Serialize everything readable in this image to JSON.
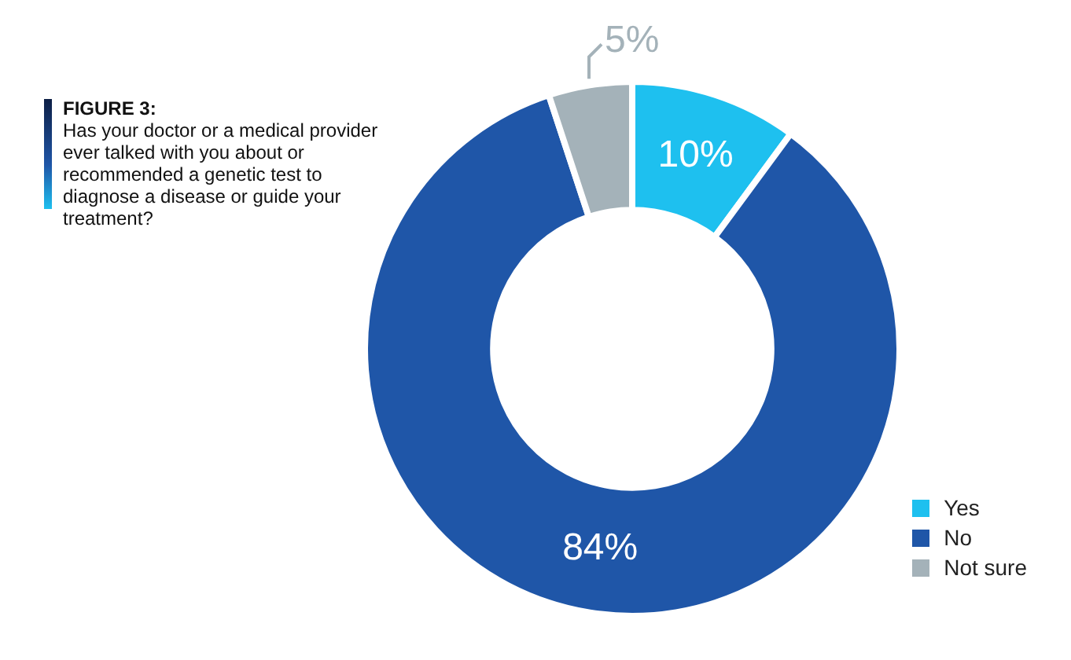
{
  "chart_data": {
    "type": "donut",
    "title": "FIGURE 3:",
    "subtitle": "Has your doctor or a medical provider ever talked with you about or recommended a genetic test to diagnose a disease or guide your treatment?",
    "categories": [
      "Yes",
      "No",
      "Not sure"
    ],
    "values": [
      10,
      84,
      5
    ],
    "colors": [
      "#1ec0ef",
      "#1f56a8",
      "#a4b2b9"
    ],
    "value_labels": [
      "10%",
      "84%",
      "5%"
    ],
    "legend": "bottom right"
  }
}
